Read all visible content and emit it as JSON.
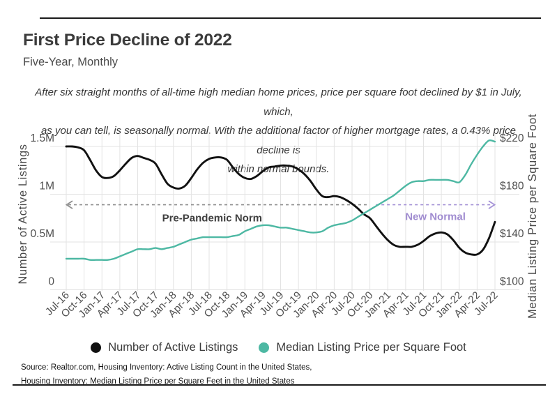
{
  "page": {
    "title": "First Price Decline of 2022",
    "subtitle": "Five-Year, Monthly",
    "annotation_lines": [
      "After six straight months of all-time high median home prices, price per square foot declined by $1 in July, which,",
      "as you can tell, is seasonally normal. With the additional factor of higher mortgage rates, a 0.43% price decline is",
      "within normal bounds."
    ],
    "source_lines": [
      "Source:  Realtor.com, Housing Inventory: Active Listing Count in the United States,",
      "Housing Inventory: Median Listing Price per Square Feet in the United States"
    ]
  },
  "colors": {
    "series_black": "#111111",
    "accent_teal": "#4db8a3",
    "annotation_purple": "#a491d6",
    "annotation_gray": "#8f8f8f",
    "gridline": "#e3e3e3",
    "tick_text": "#4f4f4f",
    "axis_title_text": "#4a4a4a"
  },
  "chart_data": {
    "type": "line",
    "x_unit": "month",
    "x_start": "Jul-16",
    "x_end": "Jul-22",
    "x_tick_labels": [
      "Jul-16",
      "Oct-16",
      "Jan-17",
      "Apr-17",
      "Jul-17",
      "Oct-17",
      "Jan-18",
      "Apr-18",
      "Jul-18",
      "Oct-18",
      "Jan-19",
      "Apr-19",
      "Jul-19",
      "Oct-19",
      "Jan-20",
      "Apr-20",
      "Jul-20",
      "Oct-20",
      "Jan-21",
      "Apr-21",
      "Jul-21",
      "Oct-21",
      "Jan-22",
      "Apr-22",
      "Jul-22"
    ],
    "grid": true,
    "left_axis": {
      "label": "Number of Active Listings",
      "tick_labels": [
        "1.5M",
        "1M",
        "0.5M",
        "0"
      ],
      "tick_values": [
        1500000,
        1000000,
        500000,
        0
      ],
      "range": [
        0,
        1500000
      ]
    },
    "right_axis": {
      "label": "Median Listing Price per Square Foot",
      "tick_labels": [
        "$220",
        "$180",
        "$140",
        "$100"
      ],
      "tick_values": [
        220,
        180,
        140,
        100
      ],
      "range": [
        100,
        220
      ]
    },
    "series": [
      {
        "name": "Number of Active Listings",
        "axis": "left",
        "color": "#111111",
        "values": [
          1500000,
          1500000,
          1490000,
          1460000,
          1360000,
          1250000,
          1180000,
          1170000,
          1190000,
          1250000,
          1320000,
          1380000,
          1400000,
          1380000,
          1360000,
          1320000,
          1210000,
          1110000,
          1070000,
          1060000,
          1090000,
          1170000,
          1260000,
          1330000,
          1370000,
          1385000,
          1385000,
          1360000,
          1280000,
          1210000,
          1170000,
          1160000,
          1190000,
          1240000,
          1280000,
          1290000,
          1300000,
          1300000,
          1290000,
          1260000,
          1210000,
          1140000,
          1050000,
          980000,
          970000,
          980000,
          970000,
          940000,
          900000,
          850000,
          790000,
          750000,
          670000,
          590000,
          520000,
          470000,
          450000,
          450000,
          450000,
          470000,
          510000,
          560000,
          590000,
          600000,
          580000,
          520000,
          440000,
          390000,
          370000,
          370000,
          420000,
          540000,
          710000
        ]
      },
      {
        "name": "Median Listing Price per Square Foot",
        "axis": "right",
        "color": "#4db8a3",
        "values": [
          126,
          126,
          126,
          126,
          125,
          125,
          125,
          125,
          126,
          128,
          130,
          132,
          134,
          134,
          134,
          135,
          134,
          135,
          136,
          138,
          140,
          142,
          143,
          144,
          144,
          144,
          144,
          144,
          145,
          146,
          149,
          151,
          153,
          154,
          154,
          153,
          152,
          152,
          151,
          150,
          149,
          148,
          148,
          149,
          152,
          154,
          155,
          156,
          158,
          161,
          164,
          167,
          170,
          173,
          176,
          179,
          183,
          187,
          190,
          191,
          191,
          192,
          192,
          192,
          192,
          191,
          190,
          196,
          205,
          213,
          220,
          225,
          224
        ]
      }
    ],
    "annotations": {
      "level_active_listings": 890000,
      "pre_pandemic": {
        "label": "Pre-Pandemic Norm",
        "color": "#8f8f8f",
        "label_color": "#3f3f3f",
        "month_span": [
          0,
          51
        ],
        "arrow": "left"
      },
      "new_normal": {
        "label": "New Normal",
        "color": "#a491d6",
        "label_color": "#a08cd0",
        "month_span": [
          52,
          72
        ],
        "arrow": "right"
      }
    },
    "legend_position": "bottom"
  }
}
